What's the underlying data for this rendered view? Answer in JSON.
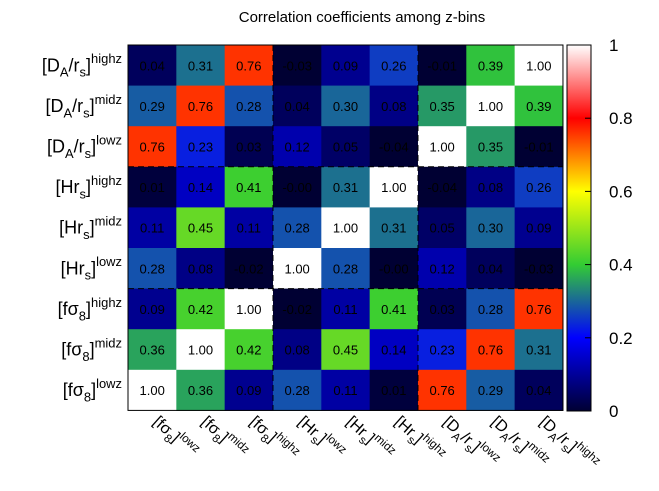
{
  "chart_data": {
    "type": "heatmap",
    "title": "Correlation coefficients among z-bins",
    "colorbar": {
      "range": [
        0,
        1
      ],
      "ticks": [
        "0",
        "0.2",
        "0.4",
        "0.6",
        "0.8",
        "1"
      ],
      "tick_values": [
        0,
        0.2,
        0.4,
        0.6,
        0.8,
        1.0
      ],
      "scale_colors": [
        "#000033",
        "#0000ff",
        "#33cc33",
        "#ffff00",
        "#ff0000",
        "#ffffff"
      ]
    },
    "row_labels_top_to_bottom": [
      {
        "base": "[D",
        "sub1": "A",
        "mid": "/r",
        "sub2": "s",
        "end": "]",
        "sup": "highz"
      },
      {
        "base": "[D",
        "sub1": "A",
        "mid": "/r",
        "sub2": "s",
        "end": "]",
        "sup": "midz"
      },
      {
        "base": "[D",
        "sub1": "A",
        "mid": "/r",
        "sub2": "s",
        "end": "]",
        "sup": "lowz"
      },
      {
        "base": "[Hr",
        "sub1": "s",
        "mid": "",
        "sub2": "",
        "end": "]",
        "sup": "highz"
      },
      {
        "base": "[Hr",
        "sub1": "s",
        "mid": "",
        "sub2": "",
        "end": "]",
        "sup": "midz"
      },
      {
        "base": "[Hr",
        "sub1": "s",
        "mid": "",
        "sub2": "",
        "end": "]",
        "sup": "lowz"
      },
      {
        "base": "[fσ",
        "sub1": "8",
        "mid": "",
        "sub2": "",
        "end": "]",
        "sup": "highz"
      },
      {
        "base": "[fσ",
        "sub1": "8",
        "mid": "",
        "sub2": "",
        "end": "]",
        "sup": "midz"
      },
      {
        "base": "[fσ",
        "sub1": "8",
        "mid": "",
        "sub2": "",
        "end": "]",
        "sup": "lowz"
      }
    ],
    "column_labels_left_to_right": [
      {
        "base": "[fσ",
        "sub1": "8",
        "mid": "",
        "sub2": "",
        "end": "]",
        "sup": "lowz"
      },
      {
        "base": "[fσ",
        "sub1": "8",
        "mid": "",
        "sub2": "",
        "end": "]",
        "sup": "midz"
      },
      {
        "base": "[fσ",
        "sub1": "8",
        "mid": "",
        "sub2": "",
        "end": "]",
        "sup": "highz"
      },
      {
        "base": "[Hr",
        "sub1": "s",
        "mid": "",
        "sub2": "",
        "end": "]",
        "sup": "lowz"
      },
      {
        "base": "[Hr",
        "sub1": "s",
        "mid": "",
        "sub2": "",
        "end": "]",
        "sup": "midz"
      },
      {
        "base": "[Hr",
        "sub1": "s",
        "mid": "",
        "sub2": "",
        "end": "]",
        "sup": "highz"
      },
      {
        "base": "[D",
        "sub1": "A",
        "mid": "/r",
        "sub2": "s",
        "end": "]",
        "sup": "lowz"
      },
      {
        "base": "[D",
        "sub1": "A",
        "mid": "/r",
        "sub2": "s",
        "end": "]",
        "sup": "midz"
      },
      {
        "base": "[D",
        "sub1": "A",
        "mid": "/r",
        "sub2": "s",
        "end": "]",
        "sup": "highz"
      }
    ],
    "matrix_rows_top_to_bottom": [
      [
        "0.04",
        "0.31",
        "0.76",
        "-0.03",
        "0.09",
        "0.26",
        "-0.01",
        "0.39",
        "1.00"
      ],
      [
        "0.29",
        "0.76",
        "0.28",
        "0.04",
        "0.30",
        "0.08",
        "0.35",
        "1.00",
        "0.39"
      ],
      [
        "0.76",
        "0.23",
        "0.03",
        "0.12",
        "0.05",
        "-0.04",
        "1.00",
        "0.35",
        "-0.01"
      ],
      [
        "0.01",
        "0.14",
        "0.41",
        "-0.00",
        "0.31",
        "1.00",
        "-0.04",
        "0.08",
        "0.26"
      ],
      [
        "0.11",
        "0.45",
        "0.11",
        "0.28",
        "1.00",
        "0.31",
        "0.05",
        "0.30",
        "0.09"
      ],
      [
        "0.28",
        "0.08",
        "-0.02",
        "1.00",
        "0.28",
        "-0.00",
        "0.12",
        "0.04",
        "-0.03"
      ],
      [
        "0.09",
        "0.42",
        "1.00",
        "-0.02",
        "0.11",
        "0.41",
        "0.03",
        "0.28",
        "0.76"
      ],
      [
        "0.36",
        "1.00",
        "0.42",
        "0.08",
        "0.45",
        "0.14",
        "0.23",
        "0.76",
        "0.31"
      ],
      [
        "1.00",
        "0.36",
        "0.09",
        "0.28",
        "0.11",
        "0.01",
        "0.76",
        "0.29",
        "0.04"
      ]
    ],
    "block_dividers": "dashed"
  }
}
